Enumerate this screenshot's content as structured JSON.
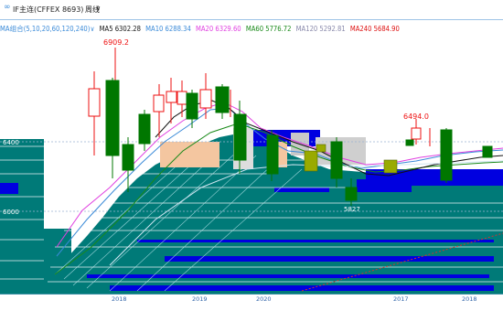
{
  "toolbar": {
    "link_glyph": "∞",
    "symbol": "IF主连(CFFEX 8693)",
    "period": "周线",
    "period_caret": "∨"
  },
  "ma_bar": {
    "label": "MA组合(5,10,20,60,120,240)",
    "caret": "∨",
    "items": [
      {
        "text": "MA5 6302.28",
        "color": "#111111"
      },
      {
        "text": "MA10 6288.34",
        "color": "#3a8ad8"
      },
      {
        "text": "MA20 6329.60",
        "color": "#e040e0"
      },
      {
        "text": "MA60 5776.72",
        "color": "#1a8a1a"
      },
      {
        "text": "MA120 5292.81",
        "color": "#8888aa"
      },
      {
        "text": "MA240 5684.90",
        "color": "#dd1111"
      }
    ]
  },
  "price_axis": [
    "6400",
    "6000"
  ],
  "annotations": {
    "high_1": "6909.2",
    "high_2": "6494.0",
    "low_1": "5827"
  },
  "date_labels": [
    "2018",
    "2019",
    "2020",
    "2017",
    "2018"
  ],
  "colors": {
    "up": "#ee1111",
    "down": "#007700",
    "teal": "#007a78",
    "blue": "#0000e0",
    "accent": "#3a8ad8"
  },
  "chart_data": {
    "type": "candlestick",
    "series": [
      {
        "name": "MA5",
        "color": "#111111"
      },
      {
        "name": "MA10",
        "color": "#3a8ad8"
      },
      {
        "name": "MA20",
        "color": "#e040e0"
      },
      {
        "name": "MA60",
        "color": "#1a8a1a"
      },
      {
        "name": "MA120",
        "color": "#8888aa"
      },
      {
        "name": "MA240",
        "color": "#dd1111"
      }
    ],
    "yticks": [
      6000,
      6400
    ]
  }
}
